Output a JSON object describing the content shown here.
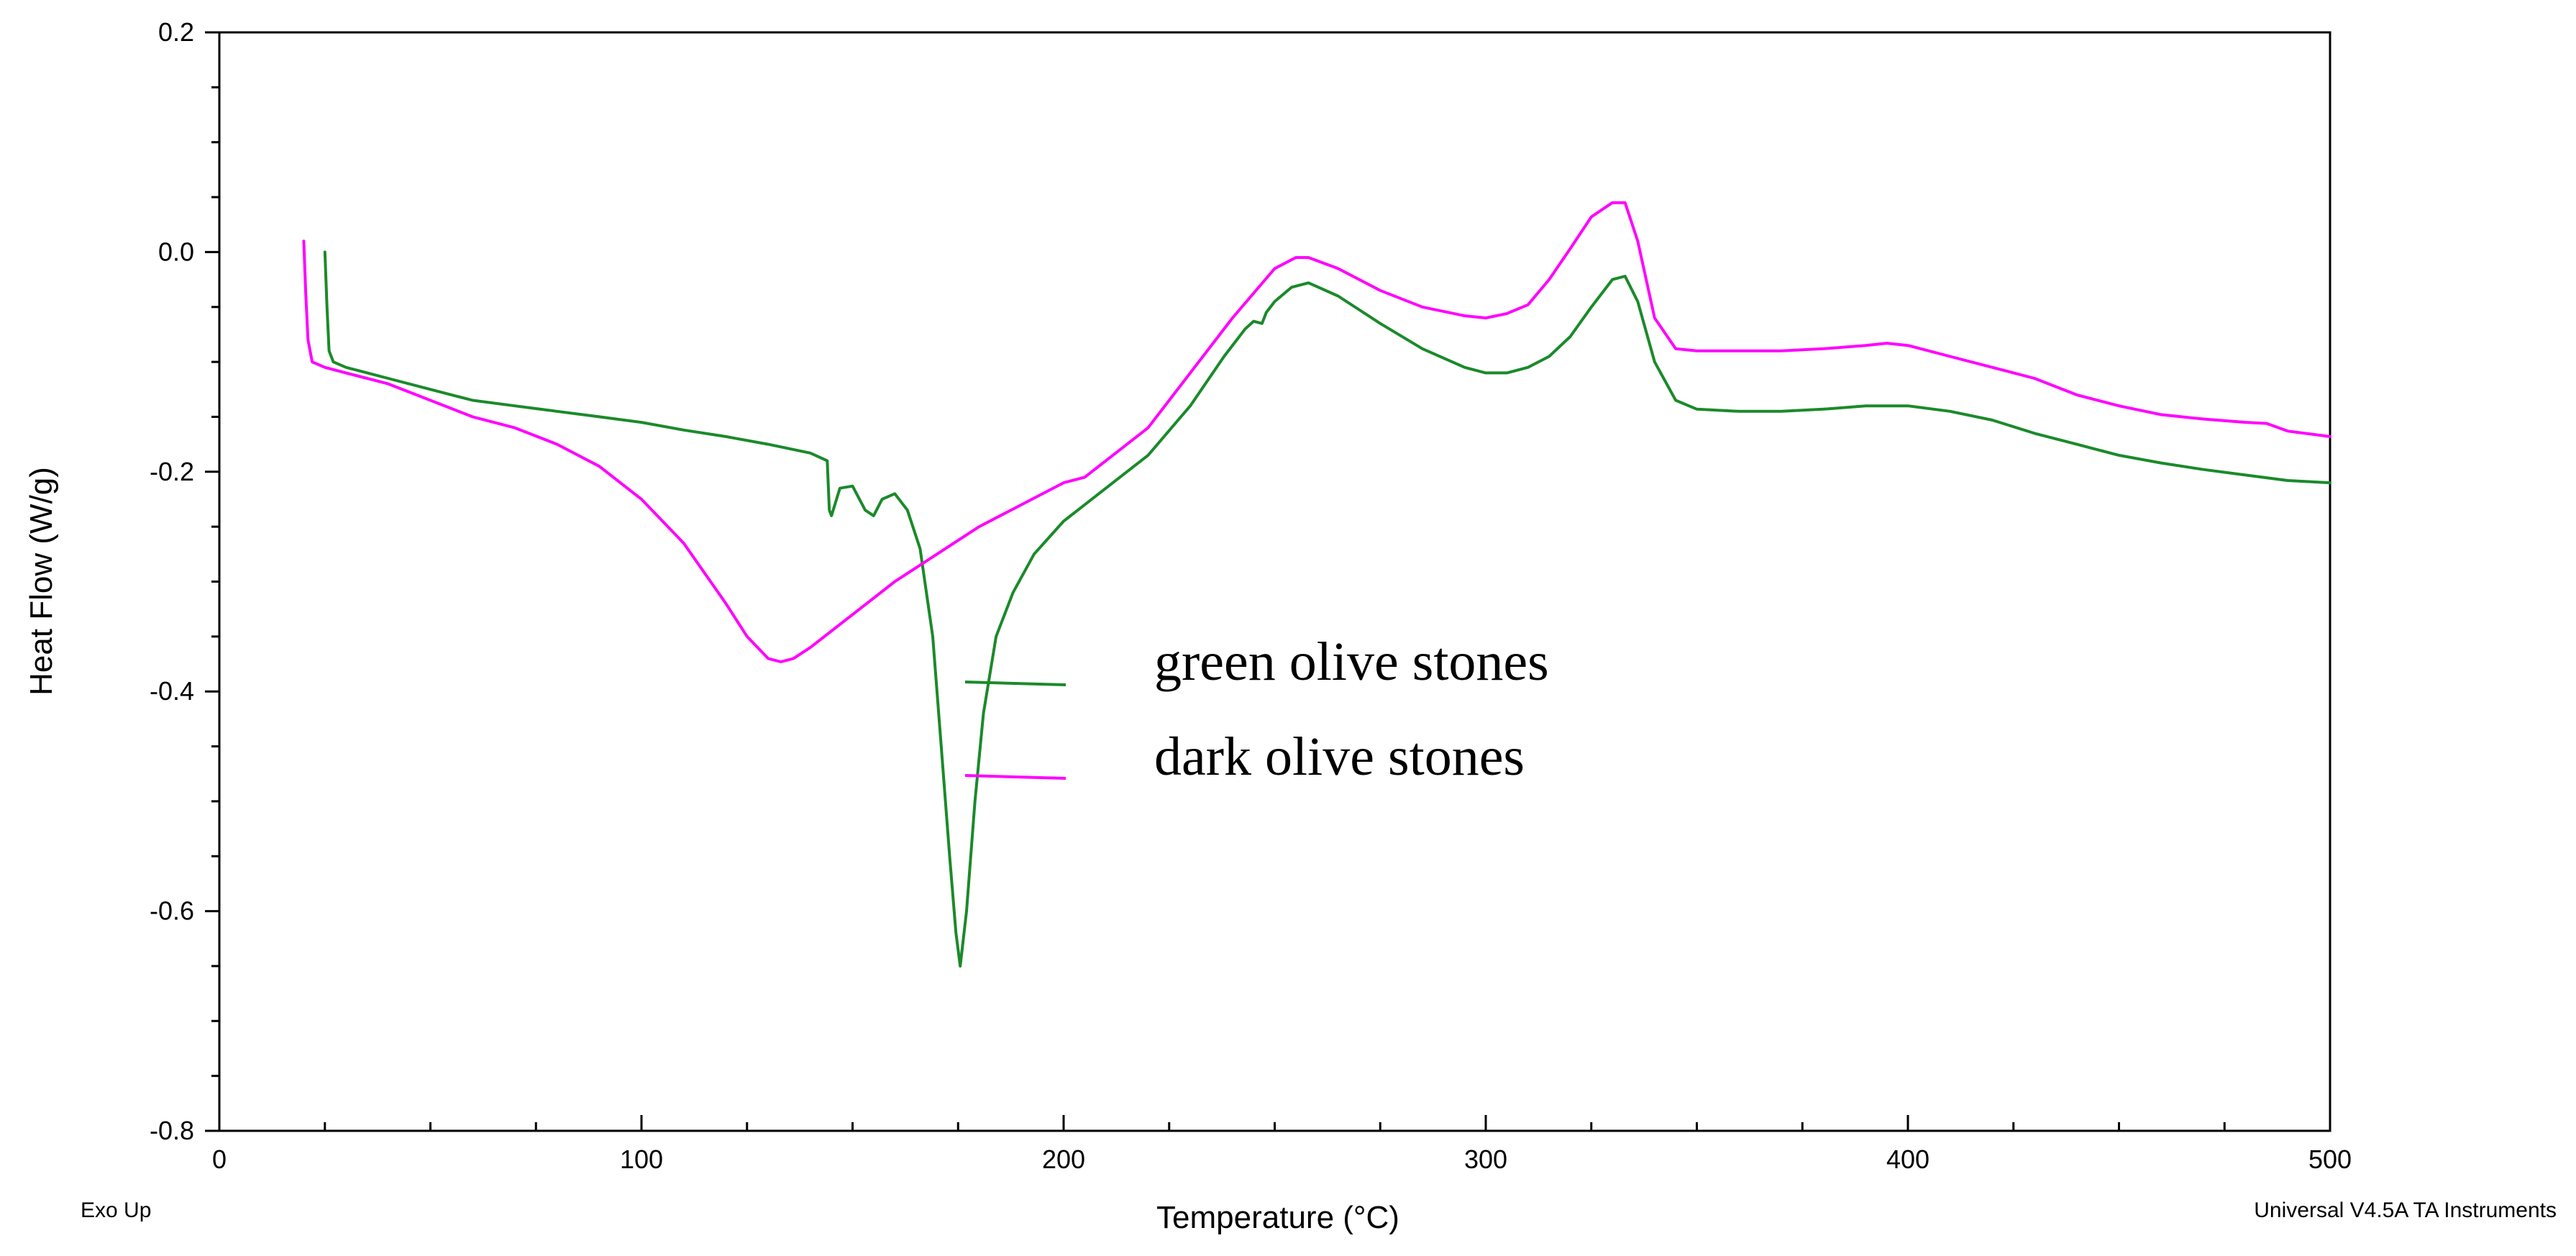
{
  "chart_data": {
    "type": "line",
    "title": "",
    "xlabel": "Temperature (°C)",
    "ylabel": "Heat Flow (W/g)",
    "xlim": [
      0,
      500
    ],
    "ylim": [
      -0.8,
      0.2
    ],
    "x_ticks": [
      "0",
      "100",
      "200",
      "300",
      "400",
      "500"
    ],
    "y_ticks": [
      "0.2",
      "0.0",
      "-0.2",
      "-0.4",
      "-0.6",
      "-0.8"
    ],
    "grid": false,
    "legend_placement": "center",
    "series": [
      {
        "name": "green olive stones",
        "color": "#1a8a2a",
        "x": [
          25,
          25.5,
          26,
          27,
          30,
          40,
          50,
          60,
          70,
          80,
          90,
          100,
          110,
          120,
          130,
          140,
          144,
          144.5,
          145,
          147,
          150,
          153,
          155,
          157,
          160,
          163,
          166,
          169,
          171,
          173,
          174.5,
          175.5,
          177,
          179,
          181,
          184,
          188,
          193,
          200,
          210,
          220,
          230,
          238,
          243,
          245,
          247,
          248,
          250,
          254,
          258,
          265,
          275,
          285,
          295,
          300,
          305,
          310,
          315,
          320,
          325,
          330,
          333,
          336,
          340,
          345,
          350,
          360,
          370,
          380,
          390,
          400,
          410,
          420,
          430,
          440,
          450,
          460,
          470,
          480,
          490,
          500
        ],
        "y": [
          0.0,
          -0.05,
          -0.09,
          -0.1,
          -0.105,
          -0.115,
          -0.125,
          -0.135,
          -0.14,
          -0.145,
          -0.15,
          -0.155,
          -0.162,
          -0.168,
          -0.175,
          -0.183,
          -0.19,
          -0.235,
          -0.24,
          -0.215,
          -0.213,
          -0.235,
          -0.24,
          -0.225,
          -0.22,
          -0.235,
          -0.27,
          -0.35,
          -0.45,
          -0.55,
          -0.62,
          -0.65,
          -0.6,
          -0.5,
          -0.42,
          -0.35,
          -0.31,
          -0.275,
          -0.245,
          -0.215,
          -0.185,
          -0.14,
          -0.095,
          -0.07,
          -0.063,
          -0.065,
          -0.055,
          -0.045,
          -0.032,
          -0.028,
          -0.04,
          -0.065,
          -0.088,
          -0.105,
          -0.11,
          -0.11,
          -0.105,
          -0.095,
          -0.077,
          -0.05,
          -0.025,
          -0.022,
          -0.045,
          -0.1,
          -0.135,
          -0.143,
          -0.145,
          -0.145,
          -0.143,
          -0.14,
          -0.14,
          -0.145,
          -0.153,
          -0.165,
          -0.175,
          -0.185,
          -0.192,
          -0.198,
          -0.203,
          -0.208,
          -0.21
        ]
      },
      {
        "name": "dark olive stones",
        "color": "#ff00ff",
        "x": [
          20,
          20.5,
          21,
          22,
          25,
          30,
          40,
          50,
          60,
          70,
          80,
          90,
          100,
          110,
          120,
          125,
          130,
          133,
          136,
          140,
          150,
          160,
          170,
          180,
          190,
          200,
          205,
          210,
          220,
          230,
          240,
          250,
          255,
          258,
          265,
          275,
          285,
          295,
          300,
          305,
          310,
          315,
          320,
          325,
          330,
          333,
          336,
          340,
          345,
          350,
          360,
          370,
          380,
          390,
          395,
          400,
          410,
          420,
          430,
          440,
          450,
          460,
          470,
          480,
          485,
          490,
          500
        ],
        "y": [
          0.01,
          -0.04,
          -0.08,
          -0.1,
          -0.105,
          -0.11,
          -0.12,
          -0.135,
          -0.15,
          -0.16,
          -0.175,
          -0.195,
          -0.225,
          -0.265,
          -0.32,
          -0.35,
          -0.37,
          -0.373,
          -0.37,
          -0.36,
          -0.33,
          -0.3,
          -0.275,
          -0.25,
          -0.23,
          -0.21,
          -0.205,
          -0.19,
          -0.16,
          -0.11,
          -0.06,
          -0.015,
          -0.005,
          -0.005,
          -0.015,
          -0.035,
          -0.05,
          -0.058,
          -0.06,
          -0.056,
          -0.048,
          -0.025,
          0.003,
          0.032,
          0.045,
          0.045,
          0.01,
          -0.06,
          -0.088,
          -0.09,
          -0.09,
          -0.09,
          -0.088,
          -0.085,
          -0.083,
          -0.085,
          -0.095,
          -0.105,
          -0.115,
          -0.13,
          -0.14,
          -0.148,
          -0.152,
          -0.155,
          -0.156,
          -0.163,
          -0.168
        ]
      }
    ],
    "legend": {
      "entries": [
        "green olive stones",
        "dark olive stones"
      ]
    },
    "footer_left": "Exo Up",
    "footer_right": "Universal V4.5A TA Instruments"
  }
}
